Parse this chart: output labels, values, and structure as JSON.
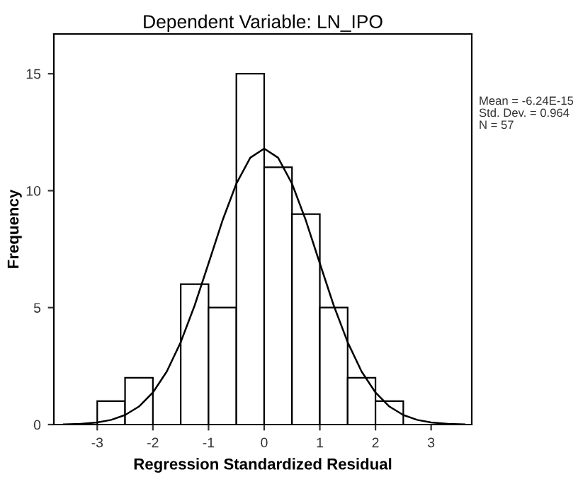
{
  "chart_data": {
    "type": "histogram",
    "title": "Dependent Variable: LN_IPO",
    "xlabel": "Regression Standardized Residual",
    "ylabel": "Frequency",
    "bins": [
      -3,
      -2.5,
      -2,
      -1.5,
      -1,
      -0.5,
      0,
      0.5,
      1,
      1.5,
      2,
      2.5
    ],
    "values": [
      1,
      2,
      0,
      6,
      5,
      15,
      11,
      9,
      5,
      2,
      1
    ],
    "color": "#ffffff",
    "series": [
      {
        "type": "line",
        "color": "#000000",
        "x": [
          -3.6,
          -3.3,
          -3,
          -2.75,
          -2.5,
          -2.25,
          -2,
          -1.75,
          -1.5,
          -1.25,
          -1,
          -0.75,
          -0.5,
          -0.25,
          0,
          0.25,
          0.5,
          0.75,
          1,
          1.25,
          1.5,
          1.75,
          2,
          2.25,
          2.5,
          2.75,
          3,
          3.3,
          3.6
        ],
        "values": [
          0.01,
          0.03,
          0.09,
          0.2,
          0.41,
          0.77,
          1.37,
          2.27,
          3.52,
          5.09,
          6.89,
          8.72,
          10.3,
          11.41,
          11.8,
          11.41,
          10.3,
          8.72,
          6.89,
          5.09,
          3.52,
          2.27,
          1.37,
          0.77,
          0.41,
          0.2,
          0.09,
          0.03,
          0.01
        ]
      }
    ],
    "xlim": [
      -3.78,
      3.73
    ],
    "ylim": [
      0,
      16.7
    ],
    "xticks": [
      -3,
      -2,
      -1,
      0,
      1,
      2,
      3
    ],
    "yticks": [
      0,
      5,
      10,
      15
    ],
    "grid": false,
    "annotations": [
      "Mean = -6.24E-15",
      "Std. Dev. = 0.964",
      "N = 57"
    ]
  }
}
